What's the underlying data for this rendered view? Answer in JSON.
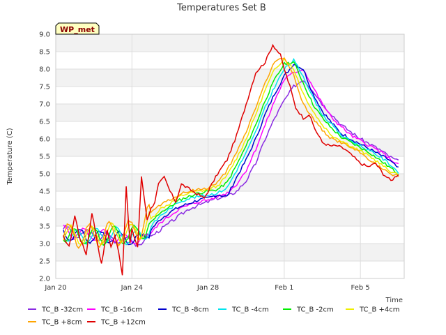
{
  "chart_data": {
    "type": "line",
    "title": "Temperatures Set B",
    "xlabel": "Time",
    "ylabel": "Temperature (C)",
    "badge": "WP_met",
    "ylim": [
      2.0,
      9.0
    ],
    "yticks": [
      "2.0",
      "2.5",
      "3.0",
      "3.5",
      "4.0",
      "4.5",
      "5.0",
      "5.5",
      "6.0",
      "6.5",
      "7.0",
      "7.5",
      "8.0",
      "8.5",
      "9.0"
    ],
    "xlim_days": [
      20,
      38.3
    ],
    "xticks": [
      {
        "label": "Jan 20",
        "day": 20
      },
      {
        "label": "Jan 24",
        "day": 24
      },
      {
        "label": "Jan 28",
        "day": 28
      },
      {
        "label": "Feb 1",
        "day": 32
      },
      {
        "label": "Feb 5",
        "day": 36
      }
    ],
    "grid": true,
    "legend_position": "bottom",
    "series": [
      {
        "name": "TC_B -32cm",
        "color": "#8a2be2",
        "lag": 1.0,
        "amp": 0.2,
        "noiseScale": 0.25,
        "seed": 3,
        "x": [
          20.4,
          21,
          22,
          23,
          23.5,
          24,
          24.5,
          25,
          25.5,
          26,
          26.5,
          27,
          27.5,
          28,
          28.5,
          29,
          29.5,
          30,
          30.5,
          31,
          31.5,
          32,
          32.5,
          33,
          33.5,
          34,
          34.5,
          35,
          35.5,
          36,
          36.5,
          37,
          37.5,
          38
        ],
        "y": [
          3.4,
          3.3,
          3.25,
          3.15,
          3.1,
          3.1,
          3.0,
          3.2,
          3.4,
          3.6,
          3.8,
          4.0,
          4.1,
          4.2,
          4.3,
          4.35,
          4.5,
          4.8,
          5.3,
          6.0,
          6.6,
          7.1,
          7.5,
          7.7,
          7.4,
          7.0,
          6.7,
          6.4,
          6.2,
          6.0,
          5.85,
          5.7,
          5.5,
          5.35
        ]
      },
      {
        "name": "TC_B -16cm",
        "color": "#ff00ff",
        "lag": 0.8,
        "amp": 0.25,
        "noiseScale": 0.22,
        "seed": 5,
        "x": [
          20.4,
          21,
          22,
          23,
          23.5,
          24,
          24.5,
          25,
          25.5,
          26,
          26.5,
          27,
          27.5,
          28,
          28.5,
          29,
          29.5,
          30,
          30.5,
          31,
          31.5,
          32,
          32.5,
          33,
          33.5,
          34,
          34.5,
          35,
          35.5,
          36,
          36.5,
          37,
          37.5,
          38
        ],
        "y": [
          3.35,
          3.3,
          3.25,
          3.2,
          3.1,
          3.15,
          3.05,
          3.3,
          3.6,
          3.8,
          4.0,
          4.1,
          4.2,
          4.25,
          4.35,
          4.45,
          4.7,
          5.1,
          5.7,
          6.4,
          7.1,
          7.7,
          7.9,
          8.0,
          7.5,
          7.0,
          6.6,
          6.35,
          6.1,
          5.95,
          5.8,
          5.65,
          5.45,
          5.25
        ]
      },
      {
        "name": "TC_B -8cm",
        "color": "#0000cd",
        "lag": 0.6,
        "amp": 0.3,
        "noiseScale": 0.22,
        "seed": 7,
        "x": [
          20.4,
          21,
          22,
          23,
          23.5,
          24,
          24.5,
          25,
          25.5,
          26,
          26.5,
          27,
          27.5,
          28,
          28.5,
          29,
          29.5,
          30,
          30.5,
          31,
          31.5,
          32,
          32.5,
          33,
          33.5,
          34,
          34.5,
          35,
          35.5,
          36,
          36.5,
          37,
          37.5,
          38
        ],
        "y": [
          3.3,
          3.25,
          3.2,
          3.2,
          3.15,
          3.15,
          3.1,
          3.4,
          3.7,
          3.9,
          4.05,
          4.15,
          4.25,
          4.3,
          4.4,
          4.35,
          4.9,
          5.4,
          6.0,
          6.7,
          7.3,
          7.8,
          8.15,
          8.0,
          7.3,
          6.8,
          6.45,
          6.15,
          6.0,
          5.85,
          5.7,
          5.55,
          5.4,
          5.15
        ]
      },
      {
        "name": "TC_B -4cm",
        "color": "#00e5ee",
        "lag": 0.45,
        "amp": 0.35,
        "noiseScale": 0.2,
        "seed": 9,
        "x": [
          20.4,
          21,
          22,
          23,
          23.5,
          24,
          24.5,
          25,
          25.5,
          26,
          26.5,
          27,
          27.5,
          28,
          28.5,
          29,
          29.5,
          30,
          30.5,
          31,
          31.5,
          32,
          32.5,
          33,
          33.5,
          34,
          34.5,
          35,
          35.5,
          36,
          36.5,
          37,
          37.5,
          38
        ],
        "y": [
          3.3,
          3.2,
          3.2,
          3.25,
          3.2,
          3.2,
          3.2,
          3.5,
          3.8,
          4.0,
          4.2,
          4.3,
          4.35,
          4.4,
          4.45,
          4.6,
          5.1,
          5.6,
          6.2,
          6.9,
          7.5,
          8.0,
          8.25,
          7.8,
          7.2,
          6.7,
          6.4,
          6.1,
          5.95,
          5.8,
          5.65,
          5.5,
          5.3,
          5.05
        ]
      },
      {
        "name": "TC_B -2cm",
        "color": "#00ee00",
        "lag": 0.3,
        "amp": 0.4,
        "noiseScale": 0.2,
        "seed": 11,
        "x": [
          20.4,
          21,
          22,
          23,
          23.5,
          24,
          24.5,
          25,
          25.5,
          26,
          26.5,
          27,
          27.5,
          28,
          28.5,
          29,
          29.5,
          30,
          30.5,
          31,
          31.5,
          32,
          32.5,
          33,
          33.5,
          34,
          34.5,
          35,
          35.5,
          36,
          36.5,
          37,
          37.5,
          38
        ],
        "y": [
          3.3,
          3.2,
          3.2,
          3.25,
          3.25,
          3.25,
          3.3,
          3.6,
          3.9,
          4.05,
          4.25,
          4.35,
          4.45,
          4.5,
          4.55,
          4.75,
          5.25,
          5.8,
          6.4,
          7.1,
          7.7,
          8.15,
          8.2,
          7.6,
          7.0,
          6.6,
          6.3,
          6.05,
          5.9,
          5.75,
          5.6,
          5.4,
          5.2,
          5.0
        ]
      },
      {
        "name": "TC_B +4cm",
        "color": "#eeee00",
        "lag": 0.15,
        "amp": 0.45,
        "noiseScale": 0.2,
        "seed": 13,
        "x": [
          20.4,
          21,
          22,
          23,
          23.5,
          24,
          24.5,
          25,
          25.5,
          26,
          26.5,
          27,
          27.5,
          28,
          28.5,
          29,
          29.5,
          30,
          30.5,
          31,
          31.5,
          32,
          32.5,
          33,
          33.5,
          34,
          34.5,
          35,
          35.5,
          36,
          36.5,
          37,
          37.5,
          38
        ],
        "y": [
          3.3,
          3.2,
          3.25,
          3.3,
          3.3,
          3.3,
          3.4,
          3.7,
          4.0,
          4.15,
          4.35,
          4.45,
          4.5,
          4.55,
          4.65,
          4.95,
          5.45,
          6.0,
          6.7,
          7.4,
          8.0,
          8.3,
          8.0,
          7.3,
          6.8,
          6.4,
          6.1,
          5.95,
          5.8,
          5.65,
          5.5,
          5.3,
          5.1,
          4.95
        ]
      },
      {
        "name": "TC_B +8cm",
        "color": "#ffa500",
        "lag": 0.05,
        "amp": 0.55,
        "noiseScale": 0.2,
        "seed": 15,
        "x": [
          20.4,
          21,
          22,
          23,
          23.5,
          24,
          24.5,
          25,
          25.5,
          26,
          26.5,
          27,
          27.5,
          28,
          28.5,
          29,
          29.5,
          30,
          30.5,
          31,
          31.5,
          32,
          32.5,
          33,
          33.5,
          34,
          34.5,
          35,
          35.5,
          36,
          36.5,
          37,
          37.5,
          38
        ],
        "y": [
          3.3,
          3.2,
          3.25,
          3.3,
          3.3,
          3.35,
          3.5,
          3.9,
          4.1,
          4.25,
          4.4,
          4.5,
          4.55,
          4.6,
          4.75,
          5.1,
          5.6,
          6.2,
          6.9,
          7.6,
          8.2,
          8.35,
          7.8,
          7.0,
          6.6,
          6.25,
          6.0,
          5.9,
          5.75,
          5.6,
          5.4,
          5.2,
          5.0,
          4.95
        ]
      },
      {
        "name": "TC_B +12cm",
        "color": "#e00000",
        "lag": 0.0,
        "amp": 0.0,
        "noiseScale": 0.2,
        "seed": 17,
        "x": [
          20.4,
          20.7,
          21.0,
          21.3,
          21.6,
          21.9,
          22.2,
          22.4,
          22.7,
          22.9,
          23.1,
          23.3,
          23.5,
          23.7,
          23.9,
          24.0,
          24.3,
          24.5,
          24.8,
          25.0,
          25.2,
          25.4,
          25.7,
          26.0,
          26.3,
          26.6,
          26.9,
          27.2,
          27.5,
          27.8,
          28.1,
          28.5,
          29.0,
          29.5,
          30.0,
          30.5,
          31.0,
          31.4,
          31.8,
          32.0,
          32.3,
          32.6,
          33.0,
          33.3,
          33.6,
          34.0,
          34.4,
          34.8,
          35.2,
          35.6,
          36.0,
          36.4,
          36.8,
          37.2,
          37.6,
          38.0
        ],
        "y": [
          3.2,
          2.9,
          3.8,
          3.1,
          2.7,
          3.9,
          3.0,
          2.4,
          3.4,
          2.9,
          3.2,
          2.8,
          2.1,
          4.6,
          3.0,
          3.4,
          2.9,
          4.9,
          3.7,
          4.0,
          4.2,
          4.7,
          4.9,
          4.5,
          4.2,
          4.7,
          4.6,
          4.5,
          4.4,
          4.3,
          4.6,
          5.0,
          5.4,
          6.1,
          7.0,
          7.9,
          8.2,
          8.7,
          8.4,
          8.0,
          7.5,
          6.9,
          6.6,
          6.7,
          6.3,
          5.9,
          5.8,
          5.8,
          5.7,
          5.5,
          5.3,
          5.2,
          5.3,
          5.0,
          4.8,
          5.0
        ]
      }
    ]
  }
}
